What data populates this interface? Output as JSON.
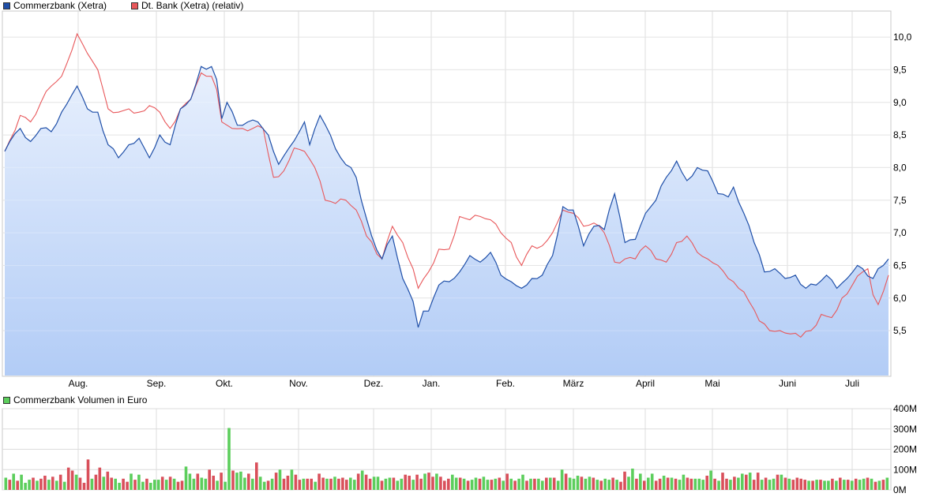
{
  "legend": {
    "series1": "Commerzbank (Xetra)",
    "series2": "Dt. Bank (Xetra) (relativ)",
    "volume": "Commerzbank Volumen in Euro"
  },
  "colors": {
    "series1": "#1f4fa8",
    "series2": "#e8575a",
    "vol_up": "#5cce5c",
    "vol_down": "#d9505b",
    "area_top": "#e8f0fd",
    "area_bottom": "#b2ccf6"
  },
  "chart_data": [
    {
      "type": "line",
      "x_labels": [
        "Aug.",
        "Sep.",
        "Okt.",
        "Nov.",
        "Dez.",
        "Jan.",
        "Feb.",
        "März",
        "April",
        "Mai",
        "Juni",
        "Juli"
      ],
      "y_tick_labels": [
        "10,0",
        "9,5",
        "9,0",
        "8,5",
        "8,0",
        "7,5",
        "7,0",
        "6,5",
        "6,0",
        "5,5"
      ],
      "ylim": [
        4.8,
        10.4
      ],
      "series": [
        {
          "name": "Commerzbank (Xetra)",
          "anchors": [
            [
              0,
              8.25
            ],
            [
              3,
              8.6
            ],
            [
              5,
              8.4
            ],
            [
              7,
              8.6
            ],
            [
              9,
              8.55
            ],
            [
              11,
              8.85
            ],
            [
              14,
              9.25
            ],
            [
              16,
              8.9
            ],
            [
              18,
              8.85
            ],
            [
              20,
              8.35
            ],
            [
              22,
              8.15
            ],
            [
              24,
              8.35
            ],
            [
              26,
              8.45
            ],
            [
              28,
              8.15
            ],
            [
              30,
              8.5
            ],
            [
              32,
              8.35
            ],
            [
              34,
              8.9
            ],
            [
              36,
              9.05
            ],
            [
              38,
              9.55
            ],
            [
              40,
              9.55
            ],
            [
              41,
              9.35
            ],
            [
              42,
              8.75
            ],
            [
              43,
              9.0
            ],
            [
              45,
              8.65
            ],
            [
              47,
              8.7
            ],
            [
              49,
              8.7
            ],
            [
              51,
              8.5
            ],
            [
              53,
              8.05
            ],
            [
              55,
              8.3
            ],
            [
              57,
              8.55
            ],
            [
              58,
              8.7
            ],
            [
              59,
              8.35
            ],
            [
              61,
              8.8
            ],
            [
              63,
              8.5
            ],
            [
              65,
              8.15
            ],
            [
              67,
              8.0
            ],
            [
              68,
              7.85
            ],
            [
              69,
              7.5
            ],
            [
              71,
              6.95
            ],
            [
              73,
              6.6
            ],
            [
              75,
              6.95
            ],
            [
              77,
              6.3
            ],
            [
              79,
              5.95
            ],
            [
              80,
              5.55
            ],
            [
              81,
              5.8
            ],
            [
              82,
              5.8
            ],
            [
              84,
              6.2
            ],
            [
              86,
              6.25
            ],
            [
              88,
              6.4
            ],
            [
              90,
              6.65
            ],
            [
              92,
              6.55
            ],
            [
              94,
              6.7
            ],
            [
              96,
              6.35
            ],
            [
              98,
              6.25
            ],
            [
              100,
              6.15
            ],
            [
              102,
              6.3
            ],
            [
              104,
              6.35
            ],
            [
              106,
              6.65
            ],
            [
              108,
              7.4
            ],
            [
              110,
              7.35
            ],
            [
              112,
              6.8
            ],
            [
              114,
              7.1
            ],
            [
              116,
              7.05
            ],
            [
              118,
              7.6
            ],
            [
              120,
              6.85
            ],
            [
              122,
              6.9
            ],
            [
              124,
              7.3
            ],
            [
              126,
              7.5
            ],
            [
              128,
              7.85
            ],
            [
              130,
              8.1
            ],
            [
              132,
              7.8
            ],
            [
              134,
              8.0
            ],
            [
              136,
              7.95
            ],
            [
              138,
              7.6
            ],
            [
              140,
              7.55
            ],
            [
              141,
              7.7
            ],
            [
              143,
              7.3
            ],
            [
              145,
              6.85
            ],
            [
              147,
              6.4
            ],
            [
              149,
              6.45
            ],
            [
              151,
              6.3
            ],
            [
              153,
              6.35
            ],
            [
              155,
              6.15
            ],
            [
              157,
              6.2
            ],
            [
              159,
              6.35
            ],
            [
              161,
              6.15
            ],
            [
              163,
              6.3
            ],
            [
              165,
              6.5
            ],
            [
              166,
              6.45
            ],
            [
              168,
              6.3
            ],
            [
              169,
              6.45
            ],
            [
              170,
              6.5
            ],
            [
              171,
              6.6
            ]
          ]
        },
        {
          "name": "Dt. Bank (Xetra) (relativ)",
          "anchors": [
            [
              0,
              8.25
            ],
            [
              3,
              8.8
            ],
            [
              5,
              8.7
            ],
            [
              7,
              9.0
            ],
            [
              9,
              9.25
            ],
            [
              11,
              9.4
            ],
            [
              13,
              9.8
            ],
            [
              14,
              10.05
            ],
            [
              16,
              9.75
            ],
            [
              18,
              9.5
            ],
            [
              20,
              8.9
            ],
            [
              22,
              8.85
            ],
            [
              24,
              8.9
            ],
            [
              26,
              8.85
            ],
            [
              28,
              8.95
            ],
            [
              30,
              8.85
            ],
            [
              32,
              8.6
            ],
            [
              34,
              8.9
            ],
            [
              36,
              9.05
            ],
            [
              38,
              9.45
            ],
            [
              40,
              9.4
            ],
            [
              41,
              9.2
            ],
            [
              42,
              8.7
            ],
            [
              44,
              8.6
            ],
            [
              46,
              8.6
            ],
            [
              48,
              8.6
            ],
            [
              50,
              8.6
            ],
            [
              52,
              7.85
            ],
            [
              54,
              7.95
            ],
            [
              56,
              8.3
            ],
            [
              58,
              8.25
            ],
            [
              60,
              8.0
            ],
            [
              62,
              7.5
            ],
            [
              64,
              7.45
            ],
            [
              66,
              7.5
            ],
            [
              68,
              7.35
            ],
            [
              70,
              6.95
            ],
            [
              73,
              6.6
            ],
            [
              75,
              7.1
            ],
            [
              77,
              6.85
            ],
            [
              79,
              6.45
            ],
            [
              80,
              6.15
            ],
            [
              82,
              6.4
            ],
            [
              84,
              6.75
            ],
            [
              86,
              6.75
            ],
            [
              88,
              7.25
            ],
            [
              90,
              7.2
            ],
            [
              92,
              7.25
            ],
            [
              94,
              7.2
            ],
            [
              96,
              7.0
            ],
            [
              98,
              6.85
            ],
            [
              100,
              6.5
            ],
            [
              102,
              6.8
            ],
            [
              104,
              6.8
            ],
            [
              106,
              7.0
            ],
            [
              108,
              7.35
            ],
            [
              110,
              7.3
            ],
            [
              112,
              7.1
            ],
            [
              114,
              7.15
            ],
            [
              116,
              7.0
            ],
            [
              118,
              6.55
            ],
            [
              120,
              6.6
            ],
            [
              122,
              6.6
            ],
            [
              124,
              6.8
            ],
            [
              126,
              6.6
            ],
            [
              128,
              6.55
            ],
            [
              130,
              6.85
            ],
            [
              132,
              6.95
            ],
            [
              134,
              6.7
            ],
            [
              136,
              6.6
            ],
            [
              138,
              6.5
            ],
            [
              140,
              6.3
            ],
            [
              142,
              6.15
            ],
            [
              144,
              5.95
            ],
            [
              146,
              5.65
            ],
            [
              148,
              5.5
            ],
            [
              150,
              5.5
            ],
            [
              152,
              5.45
            ],
            [
              154,
              5.4
            ],
            [
              156,
              5.5
            ],
            [
              158,
              5.75
            ],
            [
              160,
              5.7
            ],
            [
              162,
              6.0
            ],
            [
              164,
              6.2
            ],
            [
              166,
              6.4
            ],
            [
              167,
              6.45
            ],
            [
              168,
              6.05
            ],
            [
              169,
              5.9
            ],
            [
              170,
              6.1
            ],
            [
              171,
              6.35
            ]
          ]
        }
      ]
    },
    {
      "type": "bar",
      "title": "Commerzbank Volumen in Euro",
      "y_tick_labels": [
        "400M",
        "300M",
        "200M",
        "100M",
        "0M"
      ],
      "ylim": [
        0,
        400
      ],
      "values": [
        60,
        50,
        80,
        45,
        75,
        35,
        50,
        60,
        45,
        55,
        70,
        50,
        65,
        45,
        75,
        40,
        110,
        95,
        75,
        60,
        35,
        150,
        55,
        75,
        110,
        65,
        90,
        60,
        55,
        35,
        55,
        40,
        80,
        50,
        75,
        40,
        55,
        35,
        50,
        50,
        65,
        50,
        65,
        55,
        40,
        45,
        115,
        80,
        55,
        80,
        60,
        55,
        100,
        70,
        45,
        85,
        40,
        305,
        95,
        85,
        90,
        60,
        80,
        55,
        135,
        65,
        40,
        45,
        55,
        85,
        100,
        55,
        70,
        100,
        75,
        50,
        55,
        55,
        55,
        40,
        80,
        60,
        55,
        55,
        65,
        55,
        60,
        50,
        60,
        50,
        80,
        95,
        75,
        55,
        65,
        65,
        45,
        55,
        60,
        60,
        45,
        55,
        75,
        70,
        50,
        75,
        55,
        80,
        85,
        65,
        80,
        65,
        45,
        55,
        75,
        60,
        60,
        55,
        45,
        50,
        60,
        55,
        65,
        50,
        50,
        55,
        60,
        45,
        80,
        55,
        45,
        55,
        75,
        45,
        55,
        55,
        55,
        45,
        60,
        60,
        60,
        45,
        100,
        80,
        60,
        55,
        70,
        65,
        55,
        65,
        60,
        50,
        45,
        55,
        50,
        60,
        50,
        40,
        90,
        65,
        105,
        55,
        80,
        45,
        60,
        80,
        45,
        55,
        70,
        60,
        60,
        55,
        50,
        75,
        60,
        55,
        55,
        55,
        50,
        70,
        95,
        55,
        45,
        85,
        55,
        50,
        65,
        60,
        80,
        75,
        85,
        50,
        85,
        50,
        60,
        50,
        55,
        75,
        75,
        60,
        55,
        50,
        60,
        55,
        50,
        45,
        45,
        50,
        50,
        45,
        45,
        55,
        45,
        60,
        50,
        50,
        45,
        55,
        50,
        55,
        60,
        55,
        40,
        45,
        50,
        60
      ],
      "directions": [
        1,
        0,
        1,
        0,
        1,
        1,
        1,
        0,
        1,
        0,
        0,
        1,
        0,
        1,
        0,
        1,
        0,
        0,
        1,
        0,
        0,
        0,
        1,
        0,
        0,
        1,
        0,
        0,
        1,
        1,
        0,
        0,
        1,
        0,
        1,
        1,
        0,
        1,
        1,
        1,
        0,
        1,
        0,
        1,
        0,
        0,
        1,
        1,
        1,
        0,
        1,
        1,
        0,
        0,
        1,
        0,
        1,
        1,
        0,
        1,
        1,
        1,
        0,
        1,
        0,
        1,
        1,
        0,
        1,
        0,
        1,
        0,
        0,
        1,
        0,
        0,
        1,
        0,
        0,
        1,
        0,
        0,
        1,
        0,
        1,
        0,
        0,
        0,
        1,
        1,
        0,
        1,
        0,
        0,
        1,
        1,
        0,
        1,
        1,
        0,
        1,
        1,
        0,
        0,
        1,
        0,
        0,
        1,
        0,
        0,
        1,
        0,
        0,
        0,
        1,
        1,
        0,
        1,
        0,
        1,
        1,
        0,
        1,
        1,
        0,
        1,
        0,
        1,
        0,
        1,
        0,
        1,
        1,
        0,
        1,
        0,
        1,
        1,
        0,
        1,
        0,
        1,
        1,
        0,
        1,
        1,
        1,
        0,
        1,
        1,
        0,
        1,
        0,
        1,
        1,
        0,
        1,
        0,
        0,
        1,
        1,
        0,
        1,
        0,
        1,
        1,
        0,
        0,
        1,
        0,
        1,
        0,
        1,
        1,
        0,
        0,
        1,
        1,
        1,
        0,
        1,
        0,
        1,
        0,
        0,
        1,
        0,
        1,
        1,
        0,
        1,
        0,
        0,
        1,
        0,
        1,
        1,
        0,
        1,
        0,
        1,
        0,
        0,
        0,
        0,
        1,
        0,
        1,
        0,
        1,
        1,
        0,
        1,
        0,
        1,
        0,
        1,
        0,
        1,
        1,
        0,
        1,
        0,
        1,
        0,
        1,
        0,
        1
      ]
    }
  ]
}
